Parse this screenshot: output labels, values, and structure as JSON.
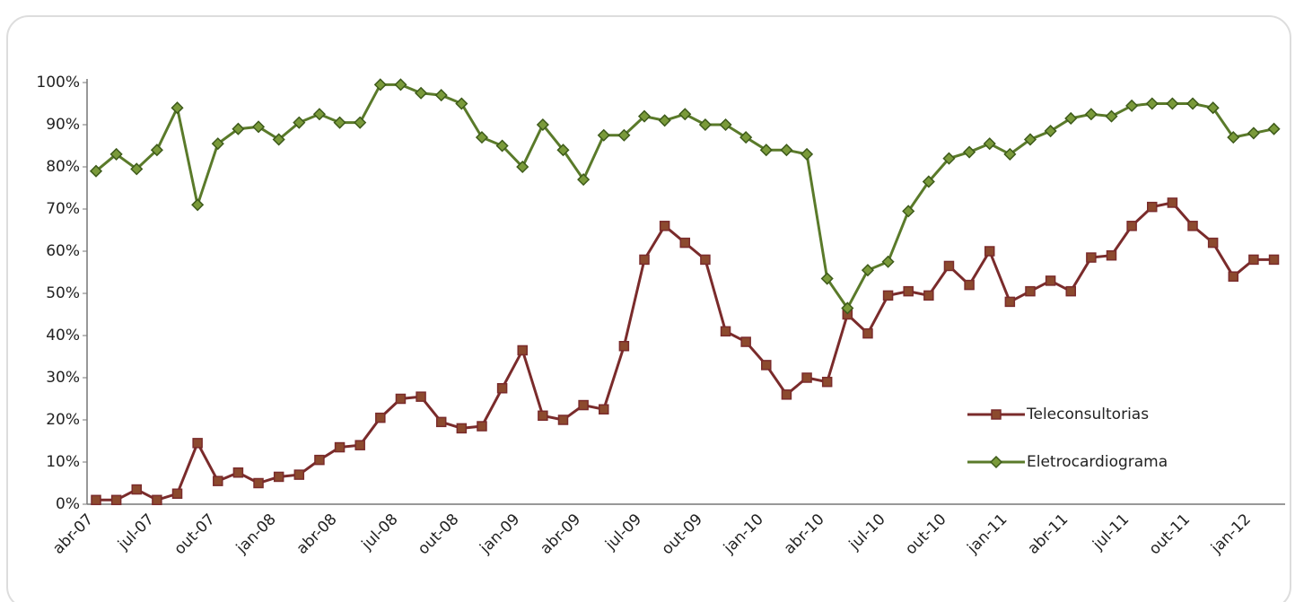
{
  "chart_data": {
    "type": "line",
    "categories": [
      "abr-07",
      null,
      null,
      "jul-07",
      null,
      null,
      "out-07",
      null,
      null,
      "jan-08",
      null,
      null,
      "abr-08",
      null,
      null,
      "jul-08",
      null,
      null,
      "out-08",
      null,
      null,
      "jan-09",
      null,
      null,
      "abr-09",
      null,
      null,
      "jul-09",
      null,
      null,
      "out-09",
      null,
      null,
      "jan-10",
      null,
      null,
      "abr-10",
      null,
      null,
      "jul-10",
      null,
      null,
      "out-10",
      null,
      null,
      "jan-11",
      null,
      null,
      "abr-11",
      null,
      null,
      "jul-11",
      null,
      null,
      "out-11",
      null,
      null,
      "jan-12",
      null
    ],
    "series": [
      {
        "name": "Teleconsultorias",
        "color": "#7a2b2b",
        "marker": "square",
        "values": [
          1,
          1,
          3.5,
          1,
          2.5,
          14.5,
          5.5,
          7.5,
          5,
          6.5,
          7,
          10.5,
          13.5,
          14,
          20.5,
          25,
          25.5,
          19.5,
          18,
          18.5,
          27.5,
          36.5,
          21,
          20,
          23.5,
          22.5,
          37.5,
          58,
          66,
          62,
          58,
          41,
          38.5,
          33,
          26,
          30,
          29,
          45,
          40.5,
          49.5,
          50.5,
          49.5,
          56.5,
          52,
          60,
          48,
          50.5,
          53,
          50.5,
          58.5,
          59,
          66,
          70.5,
          71.5,
          66,
          62,
          54,
          58,
          58
        ]
      },
      {
        "name": "Eletrocardiograma",
        "color": "#5a7a2a",
        "marker": "diamond",
        "values": [
          79,
          83,
          79.5,
          84,
          94,
          71,
          85.5,
          89,
          89.5,
          86.5,
          90.5,
          92.5,
          90.5,
          90.5,
          99.5,
          99.5,
          97.5,
          97,
          95,
          87,
          85,
          80,
          90,
          84,
          77,
          87.5,
          87.5,
          92,
          91,
          92.5,
          90,
          90,
          87,
          84,
          84,
          83,
          53.5,
          46.5,
          55.5,
          57.5,
          69.5,
          76.5,
          82,
          83.5,
          85.5,
          83,
          86.5,
          88.5,
          91.5,
          92.5,
          92,
          94.5,
          95,
          95,
          95,
          94,
          87,
          88,
          89
        ]
      }
    ],
    "ylim": [
      0,
      100
    ],
    "yticks": [
      {
        "value": 0,
        "label": "0%"
      },
      {
        "value": 10,
        "label": "10%"
      },
      {
        "value": 20,
        "label": "20%"
      },
      {
        "value": 30,
        "label": "30%"
      },
      {
        "value": 40,
        "label": "40%"
      },
      {
        "value": 50,
        "label": "50%"
      },
      {
        "value": 60,
        "label": "60%"
      },
      {
        "value": 70,
        "label": "70%"
      },
      {
        "value": 80,
        "label": "80%"
      },
      {
        "value": 90,
        "label": "90%"
      },
      {
        "value": 100,
        "label": "100%"
      }
    ],
    "grid": false
  }
}
